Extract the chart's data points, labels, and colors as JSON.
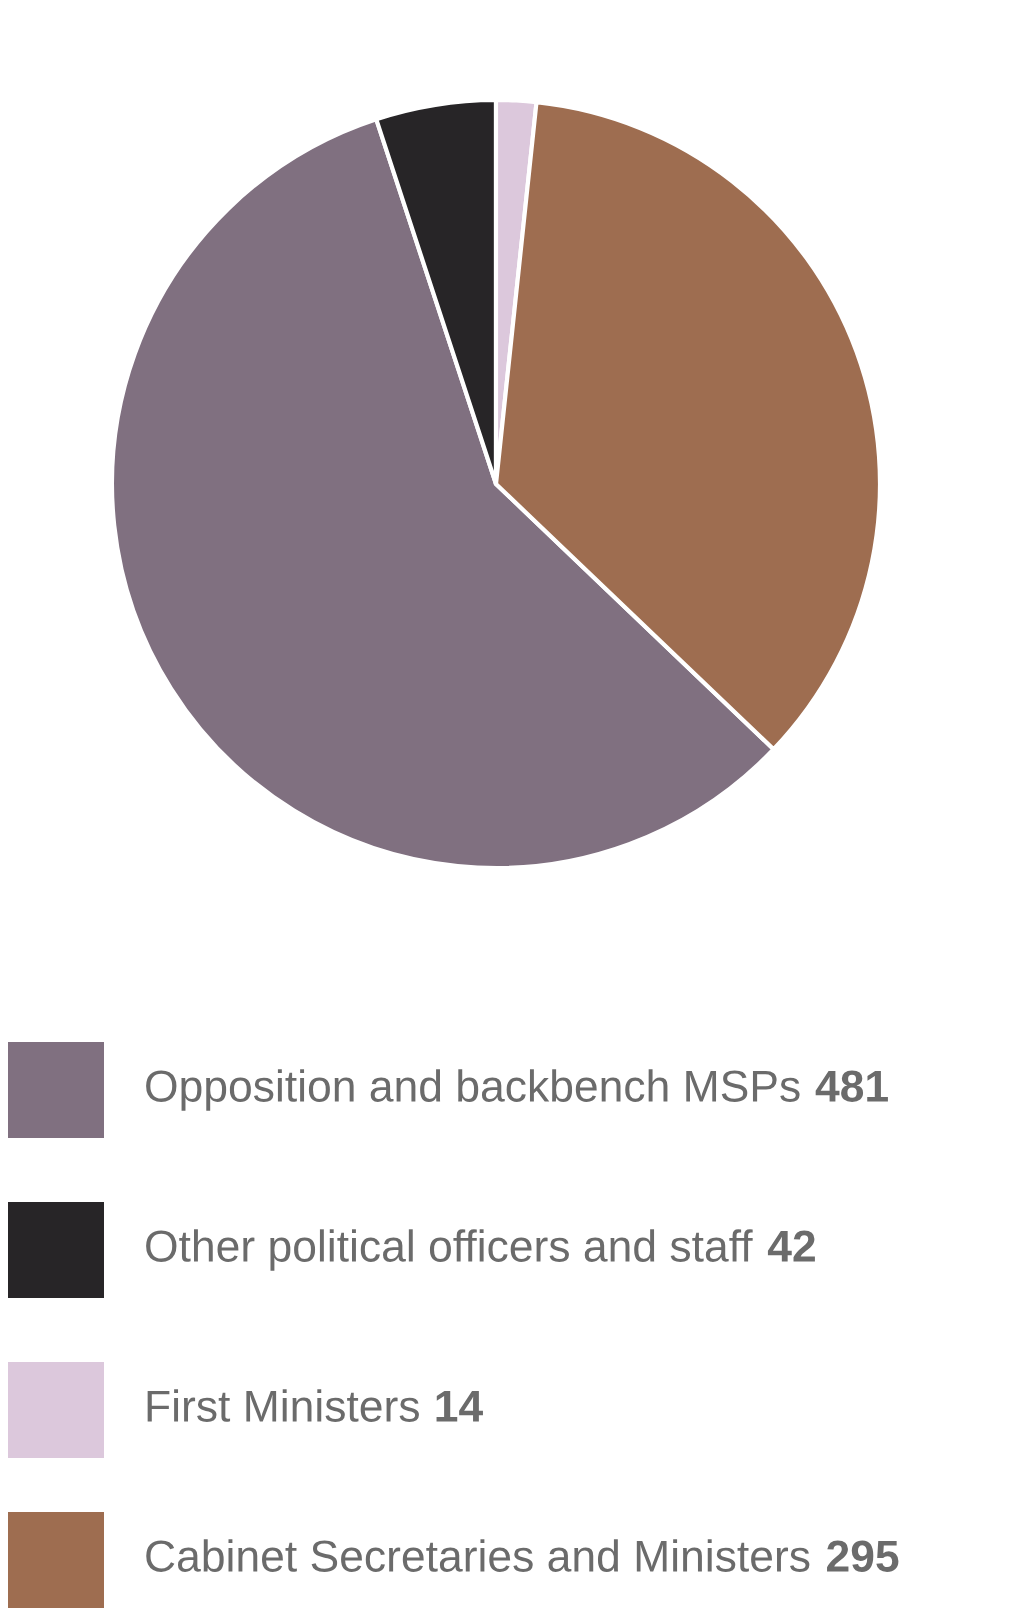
{
  "chart_data": {
    "type": "pie",
    "categories": [
      "Opposition and backbench MSPs",
      "Other political officers and staff",
      "First Ministers",
      "Cabinet Secretaries and Ministers"
    ],
    "values": [
      481,
      42,
      14,
      295
    ],
    "value_labels": [
      "481",
      "42",
      "14",
      "295"
    ],
    "colors": [
      "#807080",
      "#272527",
      "#dcc8dc",
      "#9e6d50"
    ],
    "legend": "bottom"
  }
}
